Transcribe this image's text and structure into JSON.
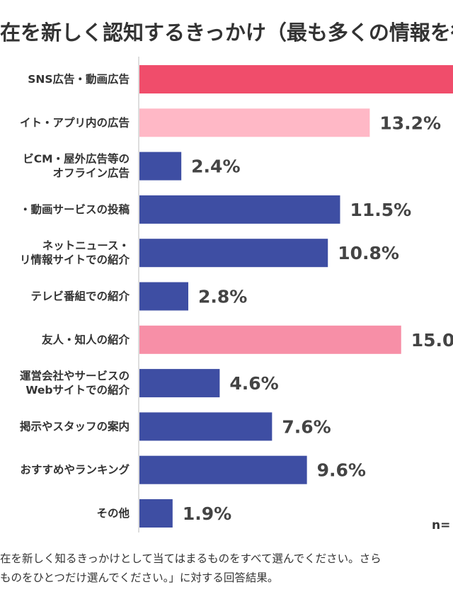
{
  "chart_data": {
    "type": "bar",
    "orientation": "horizontal",
    "title": "在を新しく認知するきっかけ（最も多くの情報を得",
    "categories": [
      [
        "SNS広告・動画広告"
      ],
      [
        "イト・アプリ内の広告"
      ],
      [
        "ビCM・屋外広告等の",
        "オフライン広告"
      ],
      [
        "・動画サービスの投稿"
      ],
      [
        "ネットニュース・",
        "リ情報サイトでの紹介"
      ],
      [
        "テレビ番組での紹介"
      ],
      [
        "友人・知人の紹介"
      ],
      [
        "運営会社やサービスの",
        "Webサイトでの紹介"
      ],
      [
        "掲示やスタッフの案内"
      ],
      [
        "おすすめやランキング"
      ],
      [
        "その他"
      ]
    ],
    "values": [
      null,
      13.2,
      2.4,
      11.5,
      10.8,
      2.8,
      15.0,
      4.6,
      7.6,
      9.6,
      1.9
    ],
    "value_labels": [
      "",
      "13.2%",
      "2.4%",
      "11.5%",
      "10.8%",
      "2.8%",
      "15.0",
      "4.6%",
      "7.6%",
      "9.6%",
      "1.9%"
    ],
    "bar_colors": [
      "#f04d6b",
      "#ffb8c6",
      "#3e4ea3",
      "#3e4ea3",
      "#3e4ea3",
      "#3e4ea3",
      "#f78fa7",
      "#3e4ea3",
      "#3e4ea3",
      "#3e4ea3",
      "#3e4ea3"
    ],
    "sample_label": "n=",
    "grid": false
  },
  "footnote": [
    "在を新しく知るきっかけとして当てはまるものをすべて選んでください。さら",
    "ものをひとつだけ選んでください。」に対する回答結果。"
  ]
}
